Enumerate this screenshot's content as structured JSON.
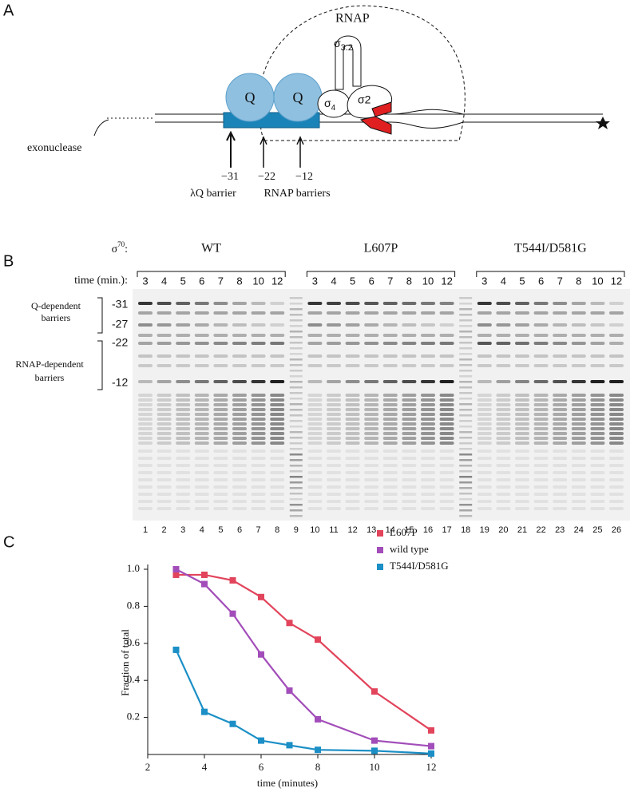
{
  "panel_a": {
    "label": "A",
    "rnap": "RNAP",
    "sigma_32": {
      "symbol": "σ",
      "sub": "3.2"
    },
    "q1": "Q",
    "q2": "Q",
    "sigma_4": {
      "symbol": "σ",
      "sub": "4"
    },
    "sigma_2": "σ2",
    "exonuclease": "exonuclease",
    "positions": [
      "−31",
      "−22",
      "−12"
    ],
    "lq_barrier": "λQ barrier",
    "rnap_barriers": "RNAP barriers"
  },
  "panel_b": {
    "label": "B",
    "sigma": {
      "symbol": "σ",
      "sup": "70",
      "colon": ":"
    },
    "time_label": "time (min.):",
    "groups": [
      {
        "name": "WT",
        "times": [
          3,
          4,
          5,
          6,
          7,
          8,
          10,
          12
        ]
      },
      {
        "name": "L607P",
        "times": [
          3,
          4,
          5,
          6,
          7,
          8,
          10,
          12
        ]
      },
      {
        "name": "T544I/D581G",
        "times": [
          3,
          4,
          5,
          6,
          7,
          8,
          10,
          12
        ]
      }
    ],
    "q_dependent": [
      "Q-dependent",
      "barriers"
    ],
    "rnap_dependent": [
      "RNAP-dependent",
      "barriers"
    ],
    "markers": [
      "-31",
      "-27",
      "-22",
      "-12"
    ],
    "lanes": [
      1,
      2,
      3,
      4,
      5,
      6,
      7,
      8,
      9,
      10,
      11,
      12,
      13,
      14,
      15,
      16,
      17,
      18,
      19,
      20,
      21,
      22,
      23,
      24,
      25,
      26
    ]
  },
  "panel_c": {
    "label": "C"
  },
  "chart_data": {
    "type": "line",
    "xlabel": "time (minutes)",
    "ylabel": "Fraction of total",
    "x": [
      3,
      4,
      5,
      6,
      7,
      8,
      10,
      12
    ],
    "series": [
      {
        "name": "L607P",
        "color": "#e2445c",
        "values": [
          0.97,
          0.97,
          0.94,
          0.85,
          0.71,
          0.62,
          0.34,
          0.13
        ]
      },
      {
        "name": "wild type",
        "color": "#a24db9",
        "values": [
          1.0,
          0.92,
          0.76,
          0.54,
          0.345,
          0.19,
          0.075,
          0.045
        ]
      },
      {
        "name": "T544I/D581G",
        "color": "#1b8fc6",
        "values": [
          0.565,
          0.23,
          0.165,
          0.075,
          0.05,
          0.025,
          0.02,
          0.005
        ]
      }
    ],
    "xlim": [
      2,
      12
    ],
    "xticks": [
      2,
      4,
      6,
      8,
      10,
      12
    ],
    "ylim": [
      0,
      1
    ],
    "yticks": [
      0.2,
      0.4,
      0.6,
      0.8,
      {
        "value": 1,
        "label": "1.0"
      }
    ],
    "legend": "upper right"
  }
}
